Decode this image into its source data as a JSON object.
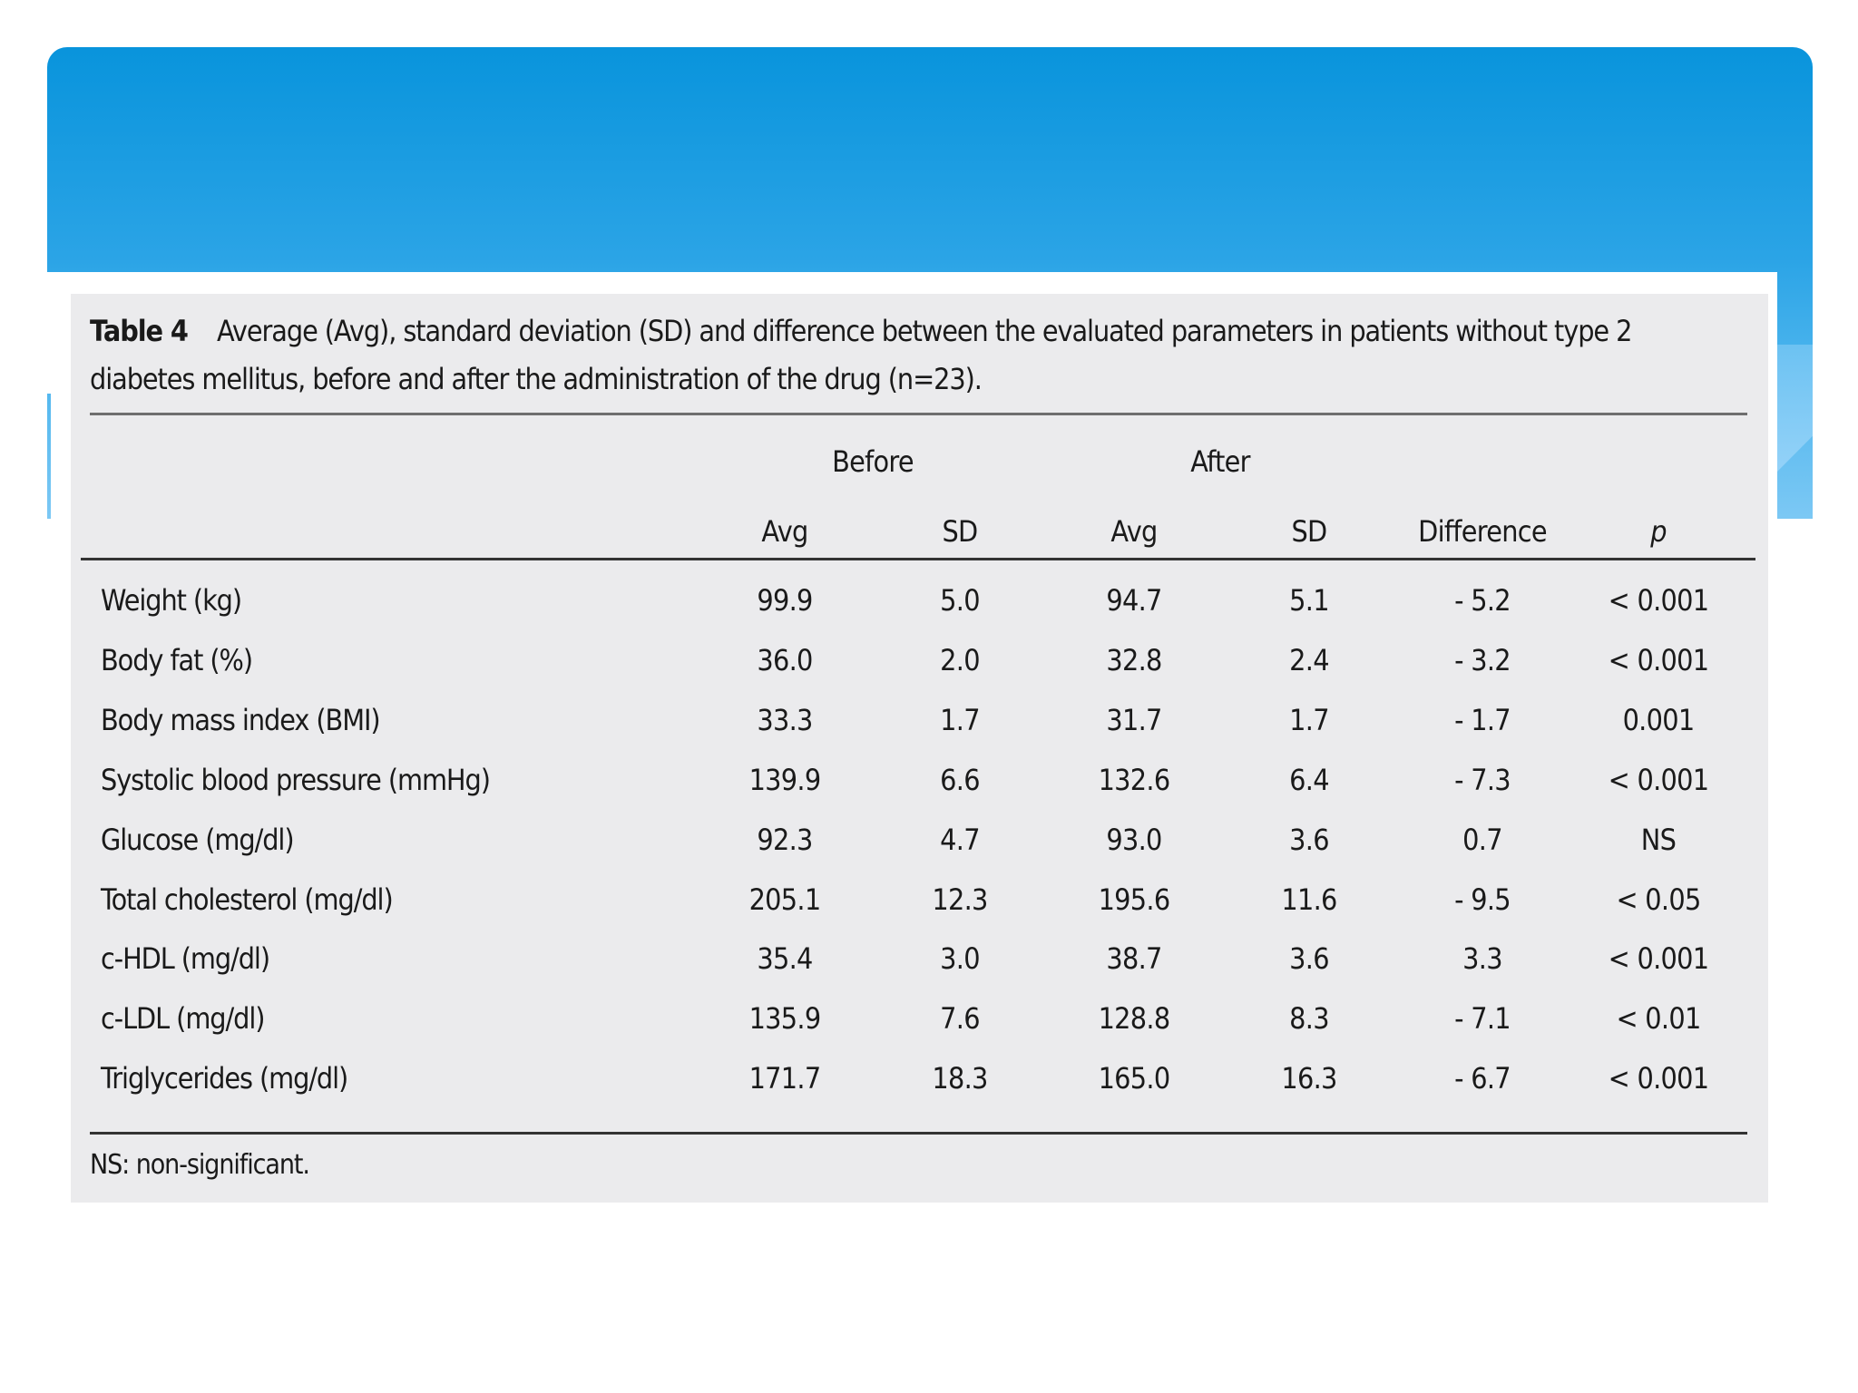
{
  "caption": {
    "label": "Table 4",
    "line1": "Average (Avg), standard deviation (SD) and difference between the evaluated parameters in patients without type 2",
    "line2": "diabetes mellitus, before and after the administration of the drug (n=23)."
  },
  "groups": [
    "Before",
    "After"
  ],
  "columns": [
    "Avg",
    "SD",
    "Avg",
    "SD",
    "Difference",
    "p"
  ],
  "rows": [
    {
      "label": "Weight (kg)",
      "values": [
        "99.9",
        "5.0",
        "94.7",
        "5.1",
        "- 5.2",
        "< 0.001"
      ]
    },
    {
      "label": "Body fat (%)",
      "values": [
        "36.0",
        "2.0",
        "32.8",
        "2.4",
        "- 3.2",
        "< 0.001"
      ]
    },
    {
      "label": "Body mass index (BMI)",
      "values": [
        "33.3",
        "1.7",
        "31.7",
        "1.7",
        "- 1.7",
        "0.001"
      ]
    },
    {
      "label": "Systolic blood pressure (mmHg)",
      "values": [
        "139.9",
        "6.6",
        "132.6",
        "6.4",
        "- 7.3",
        "< 0.001"
      ]
    },
    {
      "label": "Glucose (mg/dl)",
      "values": [
        "92.3",
        "4.7",
        "93.0",
        "3.6",
        "0.7",
        "NS"
      ]
    },
    {
      "label": "Total cholesterol (mg/dl)",
      "values": [
        "205.1",
        "12.3",
        "195.6",
        "11.6",
        "- 9.5",
        "< 0.05"
      ]
    },
    {
      "label": "c-HDL (mg/dl)",
      "values": [
        "35.4",
        "3.0",
        "38.7",
        "3.6",
        "3.3",
        "< 0.001"
      ]
    },
    {
      "label": "c-LDL (mg/dl)",
      "values": [
        "135.9",
        "7.6",
        "128.8",
        "8.3",
        "- 7.1",
        "< 0.01"
      ]
    },
    {
      "label": "Triglycerides (mg/dl)",
      "values": [
        "171.7",
        "18.3",
        "165.0",
        "16.3",
        "- 6.7",
        "< 0.001"
      ]
    }
  ],
  "footnote": "NS: non-significant.",
  "colors": {
    "header_blue": "#0994dc",
    "panel_gray": "#ebebed"
  }
}
